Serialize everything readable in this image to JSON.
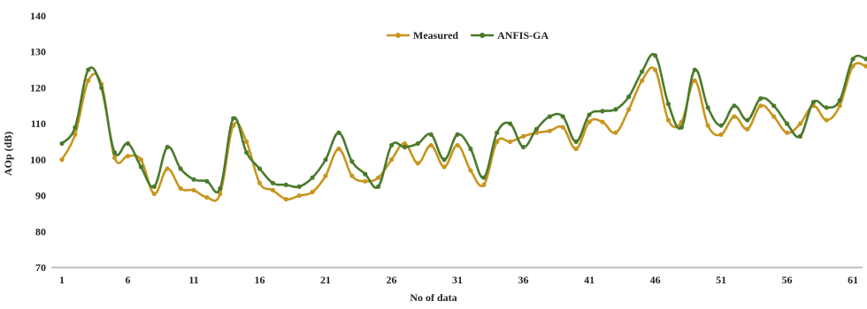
{
  "chart_data": {
    "type": "line",
    "title": "",
    "xlabel": "No of data",
    "ylabel": "AOp (dB)",
    "ylim": [
      70,
      140
    ],
    "yticks": [
      70,
      80,
      90,
      100,
      110,
      120,
      130,
      140
    ],
    "xticks": [
      1,
      6,
      11,
      16,
      21,
      26,
      31,
      36,
      41,
      46,
      51,
      56,
      61
    ],
    "xlim": [
      1,
      62
    ],
    "grid": false,
    "legend_position": "top-center",
    "x": [
      1,
      2,
      3,
      4,
      5,
      6,
      7,
      8,
      9,
      10,
      11,
      12,
      13,
      14,
      15,
      16,
      17,
      18,
      19,
      20,
      21,
      22,
      23,
      24,
      25,
      26,
      27,
      28,
      29,
      30,
      31,
      32,
      33,
      34,
      35,
      36,
      37,
      38,
      39,
      40,
      41,
      42,
      43,
      44,
      45,
      46,
      47,
      48,
      49,
      50,
      51,
      52,
      53,
      54,
      55,
      56,
      57,
      58,
      59,
      60,
      61,
      62
    ],
    "series": [
      {
        "name": "Measured",
        "color": "#C8961E",
        "values": [
          100,
          107,
          122,
          121,
          100.5,
          101,
          100,
          90.5,
          97.5,
          92,
          91.5,
          89.5,
          90.5,
          109.5,
          105,
          93.5,
          91.5,
          89,
          90,
          91,
          95.5,
          103,
          95.5,
          94,
          95,
          100,
          104.5,
          99,
          104,
          98,
          104,
          97,
          93,
          105,
          105,
          106.5,
          107.5,
          108,
          109,
          103,
          110.5,
          110.5,
          107.5,
          114,
          122,
          125,
          111,
          110.5,
          122,
          109.5,
          107,
          112,
          108.5,
          115,
          112,
          107.5,
          110,
          115,
          111,
          115,
          126,
          126
        ]
      },
      {
        "name": "ANFIS-GA",
        "color": "#4A7A2C",
        "values": [
          104.5,
          109,
          125,
          120,
          102,
          104.5,
          98,
          92.5,
          103.5,
          97.5,
          94.5,
          94,
          92,
          111.5,
          102,
          97.5,
          93.5,
          93,
          92.5,
          95,
          100,
          107.5,
          99.5,
          96,
          92.5,
          104,
          103.5,
          104.5,
          107,
          100,
          107,
          103,
          95,
          107.5,
          110,
          103.5,
          108.5,
          112,
          112,
          105,
          112.5,
          113.5,
          114,
          117.5,
          124.5,
          129,
          115.5,
          109,
          125,
          114.5,
          109.5,
          115,
          111,
          117,
          115,
          110,
          106.5,
          116,
          114.5,
          116.5,
          128,
          128
        ]
      }
    ]
  }
}
